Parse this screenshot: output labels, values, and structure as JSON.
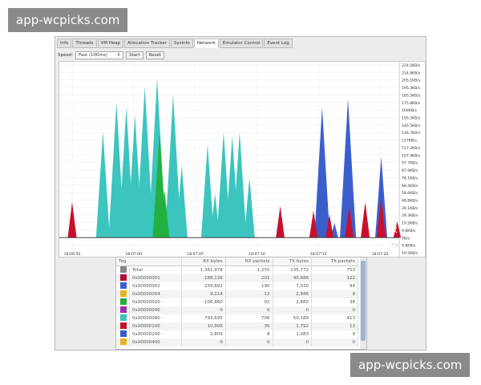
{
  "watermark": "app-wcpicks.com",
  "tabs": [
    "Info",
    "Threads",
    "VM Heap",
    "Allocation Tracker",
    "Sysinfo",
    "Network",
    "Emulator Control",
    "Event Log"
  ],
  "active_tab": "Network",
  "toolbar": {
    "speed_label": "Speed:",
    "speed_value": "Fast (100ms)",
    "start": "Start",
    "reset": "Reset"
  },
  "chart_data": {
    "type": "area",
    "y_ticks": [
      "224.0KB/s",
      "214.8KB/s",
      "205.1KB/s",
      "195.3KB/s",
      "185.5KB/s",
      "175.8KB/s",
      "166KB/s",
      "156.3KB/s",
      "146.5KB/s",
      "136.7KB/s",
      "127KB/s",
      "117.2KB/s",
      "107.4KB/s",
      "97.7KB/s",
      "87.9KB/s",
      "78.1KB/s",
      "68.4KB/s",
      "58.6KB/s",
      "48.8KB/s",
      "39.1KB/s",
      "29.3KB/s",
      "19.5KB/s",
      "9.8KB/s",
      "0B/s",
      "9.8KB/s",
      "19.5KB/s"
    ],
    "x_ticks": [
      "18:06:55",
      "18:07:00",
      "18:07:05",
      "18:07:10",
      "18:07:15",
      "18:07:20"
    ],
    "ylim": [
      -19.5,
      224
    ],
    "series": [
      {
        "color": "#3cc4be",
        "spikes": [
          [
            "18:06:57.5",
            137
          ],
          [
            "18:06:58.6",
            175
          ],
          [
            "18:06:59.4",
            169
          ],
          [
            "18:07:00.1",
            159
          ],
          [
            "18:07:00.9",
            196
          ],
          [
            "18:07:01.9",
            207
          ],
          [
            "18:07:03.2",
            185
          ],
          [
            "18:07:03.9",
            94
          ],
          [
            "18:07:06.0",
            121
          ],
          [
            "18:07:06.6",
            57
          ],
          [
            "18:07:07.3",
            137
          ],
          [
            "18:07:08.0",
            132
          ],
          [
            "18:07:08.6",
            137
          ],
          [
            "18:07:09.4",
            78
          ]
        ]
      },
      {
        "color": "#22b040",
        "spikes": [
          [
            "18:07:02.1",
            137
          ],
          [
            "18:07:02.5",
            62
          ]
        ]
      },
      {
        "color": "#3a5fcd",
        "spikes": [
          [
            "18:07:15.3",
            169
          ],
          [
            "18:07:17.4",
            180
          ],
          [
            "18:07:20.1",
            105
          ],
          [
            "18:07:16.3",
            19
          ]
        ]
      },
      {
        "color": "#c8102e",
        "spikes": [
          [
            "18:06:55.0",
            46
          ],
          [
            "18:07:11.9",
            41
          ],
          [
            "18:07:14.6",
            35
          ],
          [
            "18:07:15.9",
            30
          ],
          [
            "18:07:17.5",
            41
          ],
          [
            "18:07:18.8",
            46
          ],
          [
            "18:07:20.1",
            51
          ],
          [
            "18:07:21.4",
            21
          ]
        ]
      }
    ],
    "annotations": [
      "RX",
      "TX"
    ]
  },
  "table": {
    "headers": [
      "Tag",
      "RX bytes",
      "RX packets",
      "TX bytes",
      "TX packets"
    ],
    "rows": [
      {
        "color": "#888888",
        "cells": [
          "Total",
          "1,361,978",
          "1,255",
          "135,772",
          "753"
        ]
      },
      {
        "color": "#b0103a",
        "cells": [
          "0x00000001",
          "188,136",
          "201",
          "40,686",
          "122"
        ]
      },
      {
        "color": "#3a5fcd",
        "cells": [
          "0x00000002",
          "239,892",
          "190",
          "7,030",
          "94"
        ]
      },
      {
        "color": "#e6b422",
        "cells": [
          "0x00000004",
          "9,114",
          "12",
          "2,946",
          "9"
        ]
      },
      {
        "color": "#22b040",
        "cells": [
          "0x00000020",
          "106,860",
          "92",
          "2,880",
          "38"
        ]
      },
      {
        "color": "#9b30a8",
        "cells": [
          "0x00000040",
          "0",
          "0",
          "0",
          "0"
        ]
      },
      {
        "color": "#3cc4be",
        "cells": [
          "0x00000080",
          "793,695",
          "706",
          "50,189",
          "413"
        ]
      },
      {
        "color": "#c8102e",
        "cells": [
          "0x00000100",
          "10,906",
          "35",
          "1,792",
          "13"
        ]
      },
      {
        "color": "#3a5fcd",
        "cells": [
          "0x00000200",
          "2,809",
          "8",
          "1,083",
          "9"
        ]
      },
      {
        "color": "#e6b422",
        "cells": [
          "0x00000400",
          "0",
          "0",
          "0",
          "0"
        ]
      }
    ]
  }
}
